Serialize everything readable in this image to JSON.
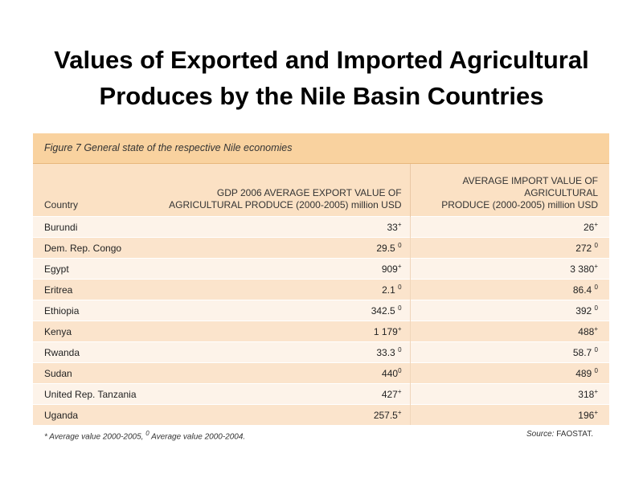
{
  "title_line1": "Values of Exported and Imported Agricultural",
  "title_line2": "Produces by the Nile Basin Countries",
  "figure_caption": "Figure 7 General state of the respective Nile economies",
  "headers": {
    "country": "Country",
    "export_line1": "GDP 2006 AVERAGE EXPORT VALUE OF",
    "export_line2": "AGRICULTURAL PRODUCE (2000-2005) million USD",
    "import_line1": "AVERAGE IMPORT VALUE OF AGRICULTURAL",
    "import_line2": "PRODUCE (2000-2005) million USD"
  },
  "rows": [
    {
      "country": "Burundi",
      "export": "33",
      "export_mark": "+",
      "import": "26",
      "import_mark": "+"
    },
    {
      "country": "Dem. Rep. Congo",
      "export": "29.5 ",
      "export_mark": "0",
      "import": "272 ",
      "import_mark": "0"
    },
    {
      "country": "Egypt",
      "export": "909",
      "export_mark": "+",
      "import": "3 380",
      "import_mark": "+"
    },
    {
      "country": "Eritrea",
      "export": "2.1 ",
      "export_mark": "0",
      "import": "86.4 ",
      "import_mark": "0"
    },
    {
      "country": "Ethiopia",
      "export": "342.5 ",
      "export_mark": "0",
      "import": "392 ",
      "import_mark": "0"
    },
    {
      "country": "Kenya",
      "export": "1 179",
      "export_mark": "+",
      "import": "488",
      "import_mark": "+"
    },
    {
      "country": "Rwanda",
      "export": "33.3 ",
      "export_mark": "0",
      "import": "58.7 ",
      "import_mark": "0"
    },
    {
      "country": "Sudan",
      "export": "440",
      "export_mark": "0",
      "import": "489 ",
      "import_mark": "0"
    },
    {
      "country": "United Rep. Tanzania",
      "export": "427",
      "export_mark": "+",
      "import": "318",
      "import_mark": "+"
    },
    {
      "country": "Uganda",
      "export": "257.5",
      "export_mark": "+",
      "import": "196",
      "import_mark": "+"
    }
  ],
  "footnote": {
    "part1": "* Average value 2000-2005, ",
    "mark": "0",
    "part2": " Average value 2000-2004."
  },
  "source": {
    "label": "Source:",
    "value": " FAOSTAT."
  }
}
